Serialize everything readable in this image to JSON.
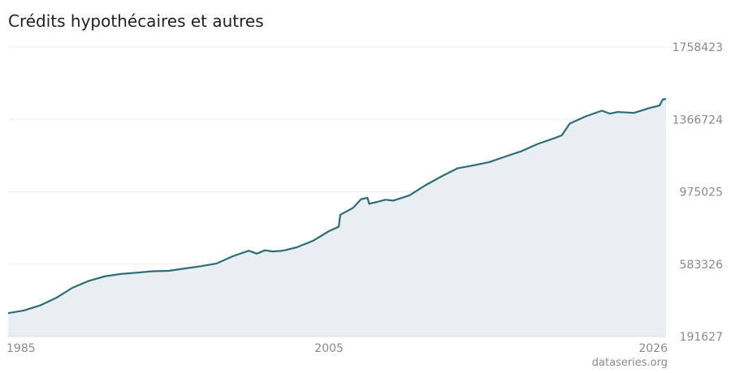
{
  "title": "Crédits hypothécaires et autres",
  "source": "dataseries.org",
  "colors": {
    "line": "#2f6b78",
    "area": "#e8eef1",
    "grid": "#eeeeee",
    "tick": "#8a8a8a"
  },
  "chart_data": {
    "type": "area",
    "title": "Crédits hypothécaires et autres",
    "xlabel": "",
    "ylabel": "",
    "xlim": [
      1985,
      2026
    ],
    "ylim": [
      191627,
      1758423
    ],
    "yticks": [
      191627,
      583326,
      975025,
      1366724,
      1758423
    ],
    "xticks": [
      1985,
      2005,
      2026
    ],
    "grid": true,
    "series": [
      {
        "name": "",
        "x": [
          1985.0,
          1986.0,
          1987.0,
          1988.0,
          1989.0,
          1990.0,
          1991.0,
          1992.0,
          1993.0,
          1994.0,
          1995.0,
          1996.0,
          1997.0,
          1998.0,
          1999.0,
          2000.0,
          2000.5,
          2001.0,
          2001.5,
          2002.0,
          2002.3,
          2003.0,
          2004.0,
          2005.0,
          2005.6,
          2005.7,
          2006.5,
          2007.0,
          2007.4,
          2007.5,
          2008.0,
          2008.5,
          2009.0,
          2010.0,
          2011.0,
          2012.0,
          2013.0,
          2014.0,
          2015.0,
          2016.0,
          2017.0,
          2018.0,
          2019.0,
          2019.5,
          2020.0,
          2021.0,
          2022.0,
          2022.5,
          2023.0,
          2024.0,
          2025.0,
          2025.6,
          2025.8,
          2026.0
        ],
        "values": [
          318000,
          333000,
          360000,
          401000,
          455000,
          492000,
          517000,
          530000,
          537000,
          545000,
          547000,
          560000,
          572000,
          587000,
          626000,
          656000,
          640000,
          658000,
          652000,
          655000,
          660000,
          675000,
          710000,
          762000,
          786000,
          851000,
          888000,
          935000,
          942000,
          910000,
          920000,
          932000,
          927000,
          955000,
          1010000,
          1058000,
          1102000,
          1118000,
          1136000,
          1166000,
          1195000,
          1234000,
          1264000,
          1280000,
          1344000,
          1383000,
          1414000,
          1398000,
          1407000,
          1402000,
          1429000,
          1442000,
          1475000,
          1477000
        ]
      }
    ]
  }
}
